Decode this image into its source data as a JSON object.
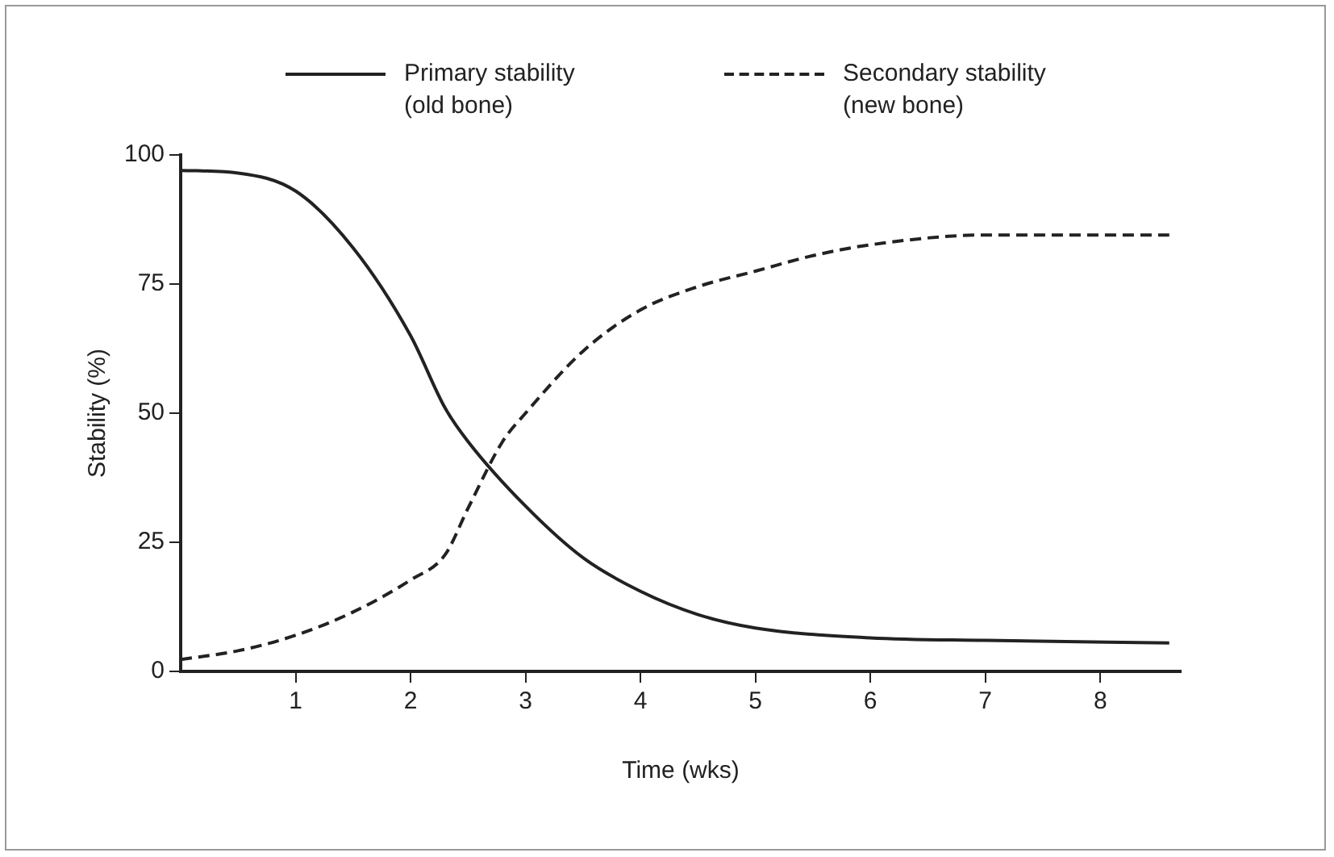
{
  "chart_data": {
    "type": "line",
    "xlabel": "Time (wks)",
    "ylabel": "Stability (%)",
    "xlim": [
      0,
      8.7
    ],
    "xticks": [
      1,
      2,
      3,
      4,
      5,
      6,
      7,
      8
    ],
    "ylim": [
      0,
      100
    ],
    "yticks": [
      0,
      25,
      50,
      75,
      100
    ],
    "grid": false,
    "legend": "top",
    "marker": "none",
    "series": [
      {
        "name": "Primary stability (old bone)",
        "color": "#222222",
        "line_style": "solid",
        "x": [
          0,
          0.5,
          1,
          1.5,
          2,
          2.3,
          2.5,
          3,
          3.5,
          4,
          4.5,
          5,
          6,
          7,
          8.6
        ],
        "values": [
          97,
          96.5,
          93,
          82,
          65,
          51,
          44.5,
          32,
          22,
          15.5,
          11,
          8.4,
          6.5,
          6,
          5.5
        ]
      },
      {
        "name": "Secondary stability (new bone)",
        "color": "#222222",
        "line_style": "dashed",
        "x": [
          0,
          0.5,
          1,
          1.5,
          2,
          2.3,
          2.5,
          2.8,
          3,
          3.5,
          4,
          4.5,
          5,
          5.5,
          6,
          7,
          8.6
        ],
        "values": [
          2.3,
          4,
          7,
          11.5,
          17.7,
          22.6,
          31.6,
          44.5,
          50,
          62,
          70,
          74.5,
          77.5,
          80.5,
          82.6,
          84.5,
          84.5
        ]
      }
    ]
  }
}
